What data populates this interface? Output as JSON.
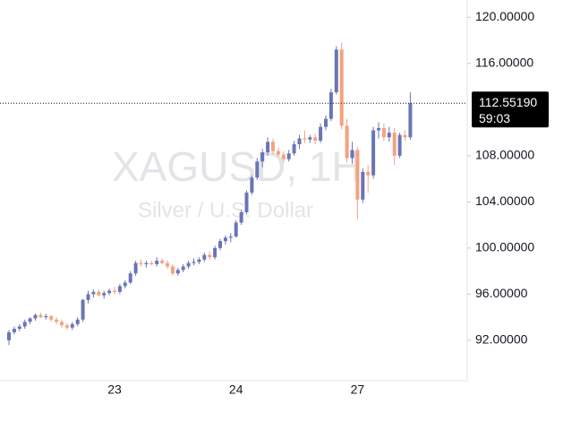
{
  "chart_data": {
    "type": "candlestick",
    "watermark_title": "XAGUSD, 1H",
    "watermark_subtitle": "Silver / U.S. Dollar",
    "categories": [
      null,
      null,
      null,
      null,
      null,
      null,
      null,
      null,
      null,
      null,
      null,
      null,
      null,
      null,
      null,
      null,
      null,
      null,
      null,
      null,
      "23",
      null,
      null,
      null,
      null,
      null,
      null,
      null,
      null,
      null,
      null,
      null,
      null,
      null,
      null,
      null,
      null,
      null,
      null,
      null,
      null,
      null,
      null,
      "24",
      null,
      null,
      null,
      null,
      null,
      null,
      null,
      null,
      null,
      null,
      null,
      null,
      null,
      null,
      null,
      null,
      null,
      null,
      null,
      null,
      null,
      null,
      "27",
      null,
      null,
      null,
      null,
      null,
      null,
      null,
      null,
      null,
      null
    ],
    "open": [
      92.0,
      92.7,
      93.0,
      93.2,
      93.6,
      93.9,
      94.2,
      94.0,
      94.1,
      93.8,
      93.6,
      93.3,
      93.1,
      93.4,
      93.8,
      95.5,
      96.0,
      96.2,
      95.9,
      96.1,
      96.3,
      96.2,
      96.7,
      97.0,
      97.8,
      98.7,
      98.6,
      98.7,
      98.6,
      98.9,
      98.7,
      98.4,
      97.8,
      98.1,
      98.4,
      98.7,
      98.8,
      99.0,
      99.4,
      99.2,
      100.0,
      100.6,
      100.9,
      101.0,
      102.2,
      103.1,
      104.8,
      106.1,
      107.5,
      108.3,
      109.2,
      108.4,
      108.1,
      107.7,
      108.2,
      109.0,
      109.5,
      109.4,
      109.6,
      109.3,
      110.5,
      111.2,
      113.5,
      117.2,
      110.6,
      107.8,
      108.5,
      104.2,
      106.6,
      106.3,
      110.2,
      110.4,
      109.6,
      110.0,
      108.0,
      109.8,
      109.6
    ],
    "high": [
      92.9,
      93.2,
      93.4,
      93.8,
      94.0,
      94.3,
      94.4,
      94.3,
      94.2,
      94.0,
      93.8,
      93.5,
      93.6,
      94.0,
      95.6,
      96.3,
      96.4,
      96.4,
      96.3,
      96.5,
      96.6,
      96.9,
      97.2,
      98.0,
      98.9,
      99.0,
      98.9,
      98.9,
      99.2,
      99.1,
      98.9,
      98.6,
      98.3,
      98.6,
      98.9,
      99.1,
      99.2,
      99.6,
      99.7,
      100.2,
      100.8,
      101.1,
      101.3,
      102.4,
      103.3,
      105.0,
      106.3,
      107.8,
      108.6,
      109.6,
      109.5,
      108.7,
      108.4,
      108.5,
      109.3,
      109.8,
      110.2,
      109.8,
      109.9,
      110.8,
      111.5,
      113.8,
      117.5,
      117.8,
      111.2,
      109.2,
      108.8,
      106.9,
      107.2,
      110.5,
      110.9,
      110.8,
      110.5,
      110.4,
      110.0,
      110.2,
      113.5
    ],
    "low": [
      91.6,
      92.5,
      92.8,
      93.0,
      93.4,
      93.7,
      93.9,
      93.8,
      93.6,
      93.4,
      93.1,
      92.9,
      92.9,
      93.2,
      93.6,
      95.2,
      95.7,
      95.8,
      95.6,
      95.9,
      96.0,
      96.0,
      96.5,
      96.9,
      97.6,
      98.4,
      98.3,
      98.5,
      98.4,
      98.6,
      98.2,
      97.6,
      97.6,
      97.9,
      98.2,
      98.5,
      98.6,
      98.8,
      99.0,
      99.0,
      99.8,
      100.3,
      100.5,
      100.9,
      102.0,
      102.9,
      104.6,
      105.9,
      107.0,
      108.0,
      108.1,
      107.9,
      107.4,
      107.5,
      108.0,
      108.6,
      109.1,
      109.1,
      109.0,
      109.1,
      110.2,
      111.0,
      113.3,
      110.3,
      107.4,
      107.3,
      102.5,
      103.9,
      104.8,
      106.0,
      109.5,
      109.3,
      109.2,
      107.2,
      107.8,
      109.3,
      109.4
    ],
    "close": [
      92.7,
      93.0,
      93.2,
      93.6,
      93.9,
      94.2,
      94.0,
      94.1,
      93.8,
      93.6,
      93.3,
      93.1,
      93.4,
      93.8,
      95.5,
      96.0,
      96.2,
      95.9,
      96.1,
      96.3,
      96.2,
      96.7,
      97.0,
      97.8,
      98.7,
      98.6,
      98.7,
      98.6,
      98.9,
      98.7,
      98.4,
      97.8,
      98.1,
      98.4,
      98.7,
      98.8,
      99.0,
      99.4,
      99.2,
      100.0,
      100.6,
      100.9,
      101.0,
      102.2,
      103.1,
      104.8,
      106.1,
      107.5,
      108.3,
      109.2,
      108.4,
      108.1,
      107.7,
      108.2,
      109.0,
      109.5,
      109.4,
      109.6,
      109.3,
      110.5,
      111.2,
      113.5,
      117.2,
      110.6,
      107.8,
      108.5,
      104.2,
      106.6,
      106.3,
      110.2,
      110.4,
      109.6,
      110.0,
      108.0,
      109.8,
      109.6,
      112.5519
    ],
    "up_color": "#6a75b6",
    "down_color": "#f4a27e",
    "ylim": [
      88.5,
      121.5
    ],
    "yticks": [
      {
        "value": 92,
        "label": "92.00000"
      },
      {
        "value": 96,
        "label": "96.00000"
      },
      {
        "value": 100,
        "label": "100.00000"
      },
      {
        "value": 104,
        "label": "104.00000"
      },
      {
        "value": 108,
        "label": "108.00000"
      },
      {
        "value": 116,
        "label": "116.00000"
      },
      {
        "value": 120,
        "label": "120.00000"
      }
    ],
    "last_price": {
      "value": 112.5519,
      "label": "112.55190"
    },
    "countdown": "59:03"
  }
}
